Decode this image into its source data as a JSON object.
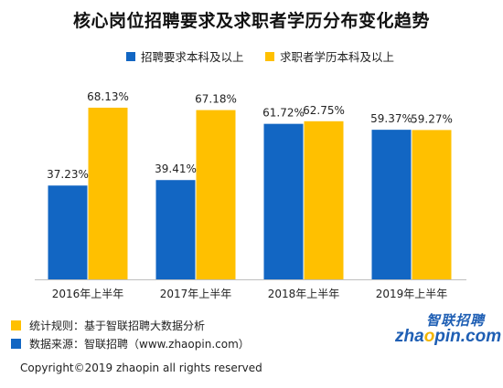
{
  "colors": {
    "series_blue": "#1266c3",
    "series_yellow": "#ffc000",
    "baseline": "#bfbfbf"
  },
  "chart_data": {
    "type": "bar",
    "title": "核心岗位招聘要求及求职者学历分布变化趋势",
    "categories": [
      "2016年上半年",
      "2017年上半年",
      "2018年上半年",
      "2019年上半年"
    ],
    "series": [
      {
        "name": "招聘要求本科及以上",
        "values": [
          37.23,
          39.41,
          61.72,
          59.37
        ],
        "labels": [
          "37.23%",
          "39.41%",
          "61.72%",
          "59.37%"
        ]
      },
      {
        "name": "求职者学历本科及以上",
        "values": [
          68.13,
          67.18,
          62.75,
          59.27
        ],
        "labels": [
          "68.13%",
          "67.18%",
          "62.75%",
          "59.27%"
        ]
      }
    ],
    "ylim": [
      0,
      100
    ],
    "legend": "top",
    "grid": false
  },
  "footer": {
    "rule": "统计规则：基于智联招聘大数据分析",
    "source": "数据来源：智联招聘（www.zhaopin.com）",
    "copyright": "Copyright©2019 zhaopin all rights reserved"
  },
  "logo": {
    "cn": "智联招聘",
    "en_prefix": "zha",
    "en_o": "o",
    "en_suffix": "pin.com"
  }
}
